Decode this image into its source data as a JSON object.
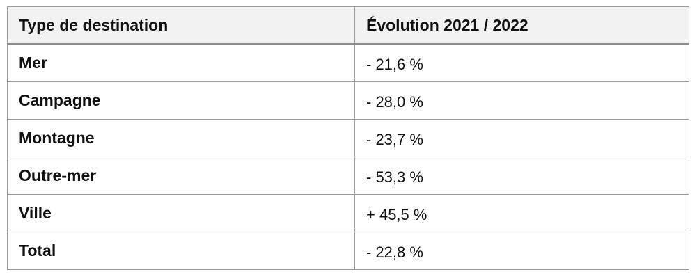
{
  "table": {
    "headers": [
      "Type de destination",
      "Évolution 2021 / 2022"
    ],
    "rows": [
      {
        "destination": "Mer",
        "evolution": "- 21,6 %"
      },
      {
        "destination": "Campagne",
        "evolution": "- 28,0 %"
      },
      {
        "destination": "Montagne",
        "evolution": "- 23,7 %"
      },
      {
        "destination": "Outre-mer",
        "evolution": "- 53,3 %"
      },
      {
        "destination": "Ville",
        "evolution": "+ 45,5 %"
      },
      {
        "destination": "Total",
        "evolution": "- 22,8 %"
      }
    ]
  }
}
